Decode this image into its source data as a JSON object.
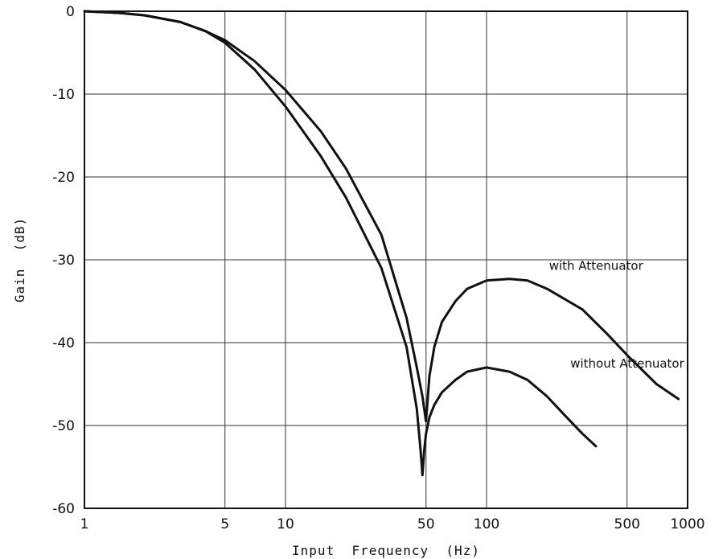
{
  "chart_data": {
    "type": "line",
    "title": "",
    "xlabel": "Input  Frequency  (Hz)",
    "ylabel": "Gain  (dB)",
    "x_scale": "log",
    "xlim": [
      1,
      1000
    ],
    "ylim": [
      -60,
      0
    ],
    "grid": true,
    "x_ticks": [
      1,
      5,
      10,
      50,
      100,
      500,
      1000
    ],
    "x_tick_labels": [
      "1",
      "5",
      "10",
      "50",
      "100",
      "500",
      "1000"
    ],
    "y_ticks": [
      0,
      -10,
      -20,
      -30,
      -40,
      -50,
      -60
    ],
    "y_tick_labels": [
      "0",
      "-10",
      "-20",
      "-30",
      "-40",
      "-50",
      "-60"
    ],
    "series": [
      {
        "name": "with Attenuator",
        "x": [
          1,
          1.5,
          2,
          3,
          4,
          5,
          7,
          10,
          15,
          20,
          30,
          40,
          45,
          48,
          50,
          52,
          55,
          60,
          70,
          80,
          100,
          130,
          160,
          200,
          300,
          400,
          500,
          700,
          900
        ],
        "y": [
          0,
          -0.2,
          -0.5,
          -1.3,
          -2.4,
          -3.5,
          -6,
          -9.5,
          -14.5,
          -19,
          -27,
          -37,
          -43,
          -46.5,
          -49.5,
          -44,
          -40.5,
          -37.5,
          -35,
          -33.5,
          -32.5,
          -32.3,
          -32.5,
          -33.5,
          -36,
          -39,
          -41.5,
          -45,
          -46.8
        ]
      },
      {
        "name": "without Attenuator",
        "x": [
          1,
          1.5,
          2,
          3,
          4,
          5,
          7,
          10,
          15,
          20,
          30,
          40,
          45,
          47,
          48,
          49,
          50,
          52,
          55,
          60,
          70,
          80,
          100,
          130,
          160,
          200,
          250,
          300,
          350
        ],
        "y": [
          0,
          -0.2,
          -0.5,
          -1.3,
          -2.4,
          -3.8,
          -7,
          -11.5,
          -17.5,
          -22.5,
          -31,
          -40.5,
          -48,
          -53,
          -56,
          -53,
          -51,
          -49,
          -47.5,
          -46,
          -44.5,
          -43.5,
          -43,
          -43.5,
          -44.5,
          -46.5,
          -49,
          -51,
          -52.5
        ]
      }
    ]
  }
}
